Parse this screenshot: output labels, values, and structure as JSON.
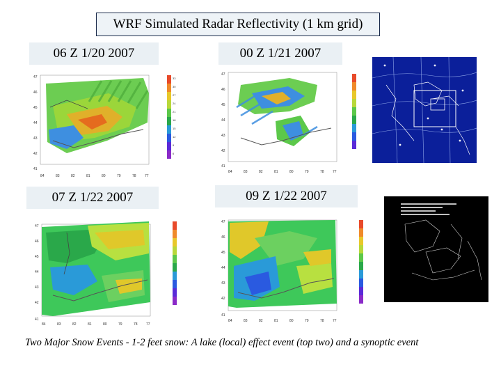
{
  "title": "WRF Simulated Radar Reflectivity (1 km grid)",
  "panels": [
    {
      "label": "06 Z 1/20 2007"
    },
    {
      "label": "00 Z 1/21 2007"
    },
    {
      "label": "07 Z 1/22 2007"
    },
    {
      "label": "09 Z 1/22 2007"
    }
  ],
  "lat_ticks_top": [
    "47",
    "46",
    "45",
    "44",
    "43",
    "42",
    "41"
  ],
  "lon_ticks": [
    "84",
    "83",
    "82",
    "81",
    "80",
    "79",
    "78",
    "77"
  ],
  "colorbar_ticks": [
    "33",
    "30",
    "27",
    "24",
    "21",
    "18",
    "15",
    "12",
    "9",
    "6",
    "3"
  ],
  "caption": "Two Major Snow Events - 1-2 feet snow: A lake (local) effect event (top two) and a synoptic event",
  "colors": {
    "title_bg": "#eef3f7",
    "label_bg": "#eaf0f4",
    "map_bg": "#0b1f9a",
    "sat_bg": "#000000"
  }
}
